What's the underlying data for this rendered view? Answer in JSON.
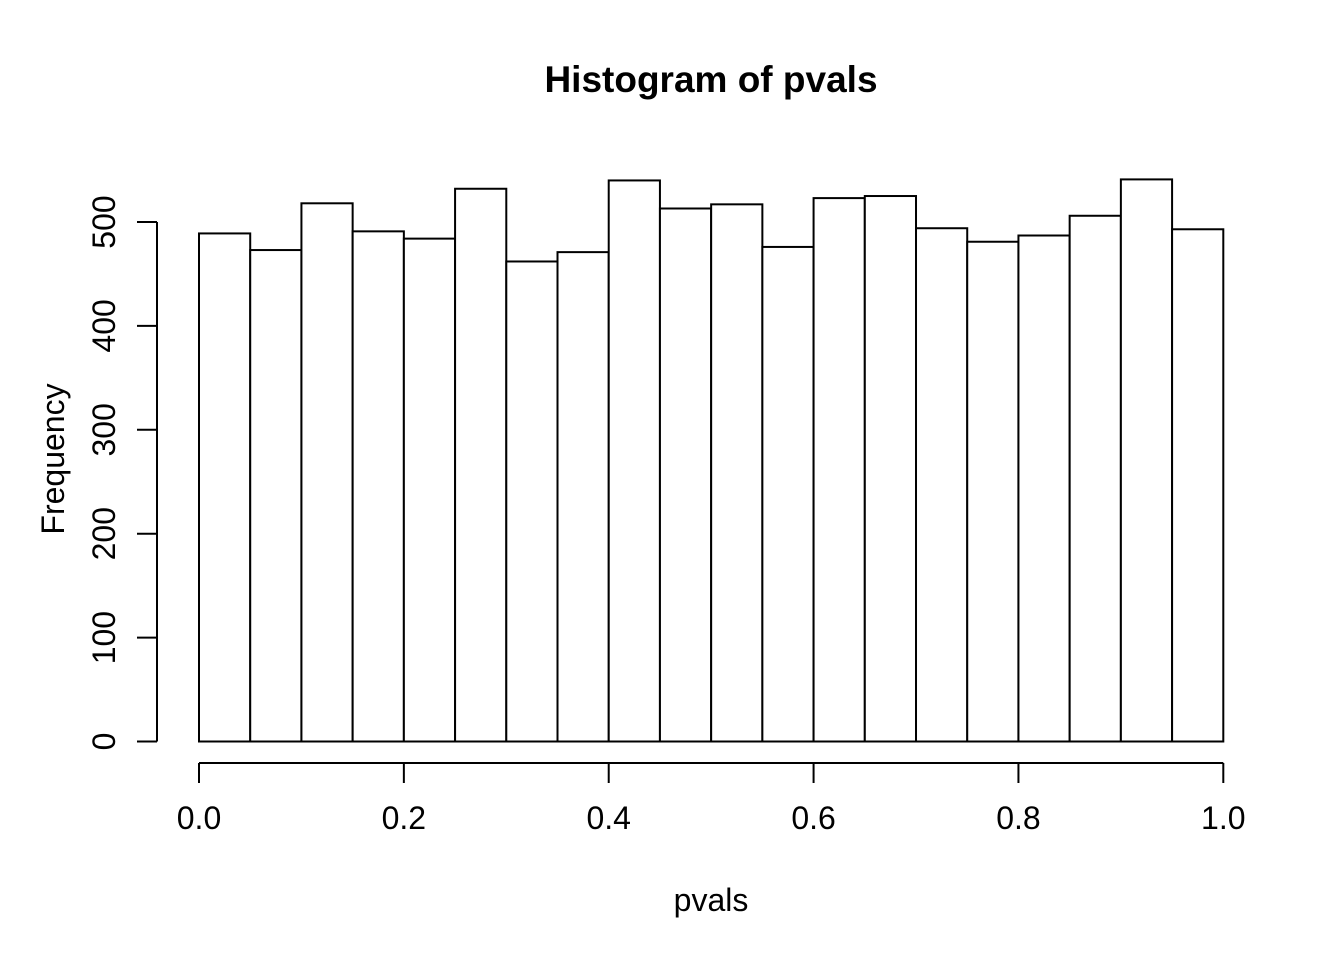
{
  "page": {
    "background": "#ffffff"
  },
  "chart_data": {
    "type": "bar",
    "subtype": "histogram",
    "title": "Histogram of pvals",
    "xlabel": "pvals",
    "ylabel": "Frequency",
    "bin_edges": [
      0.0,
      0.05,
      0.1,
      0.15,
      0.2,
      0.25,
      0.3,
      0.35,
      0.4,
      0.45,
      0.5,
      0.55,
      0.6,
      0.65,
      0.7,
      0.75,
      0.8,
      0.85,
      0.9,
      0.95,
      1.0
    ],
    "counts": [
      489,
      473,
      518,
      491,
      484,
      532,
      462,
      471,
      540,
      513,
      517,
      476,
      523,
      525,
      494,
      481,
      487,
      506,
      541,
      493
    ],
    "x_tick_values": [
      0.0,
      0.2,
      0.4,
      0.6,
      0.8,
      1.0
    ],
    "x_tick_labels": [
      "0.0",
      "0.2",
      "0.4",
      "0.6",
      "0.8",
      "1.0"
    ],
    "y_tick_values": [
      0,
      100,
      200,
      300,
      400,
      500
    ],
    "y_tick_labels": [
      "0",
      "100",
      "200",
      "300",
      "400",
      "500"
    ],
    "xlim": [
      0.0,
      1.0
    ],
    "ylim": [
      0,
      541
    ],
    "grid": false,
    "legend": null,
    "bar_fill": "#ffffff",
    "bar_stroke": "#000000",
    "axis_color": "#000000",
    "text_color": "#000000"
  }
}
